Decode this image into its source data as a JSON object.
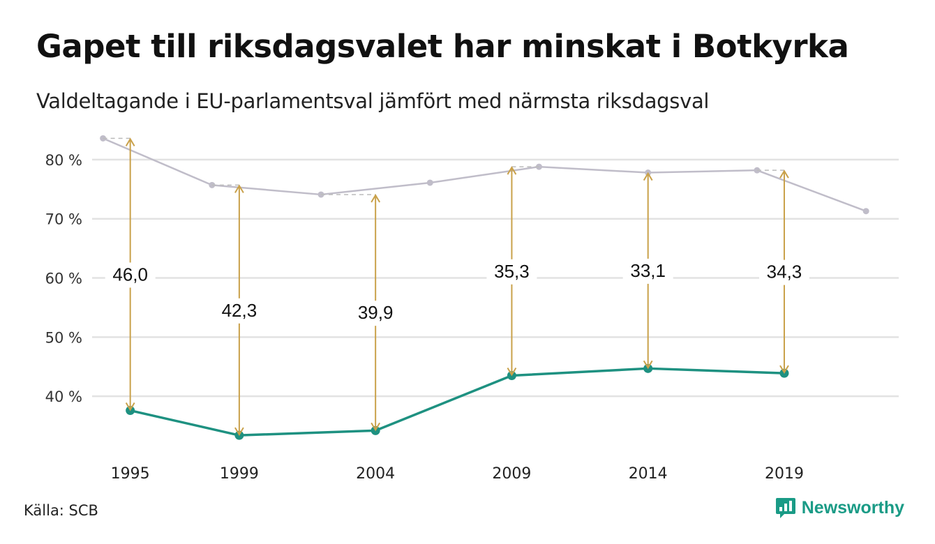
{
  "header": {
    "title": "Gapet till riksdagsvalet har minskat i Botkyrka",
    "subtitle": "Valdeltagande i EU-parlamentsval jämfört med närmsta riksdagsval"
  },
  "footer": {
    "source": "Källa: SCB",
    "brand": "Newsworthy"
  },
  "colors": {
    "riksdag": "#c0bdc9",
    "eu": "#1e9181",
    "arrow": "#c9a14a",
    "grid": "#e2e2e2"
  },
  "chart_data": {
    "type": "line",
    "ylim": [
      30,
      86
    ],
    "yticks": [
      {
        "value": 40,
        "label": "40 %"
      },
      {
        "value": 50,
        "label": "50 %"
      },
      {
        "value": 60,
        "label": "60 %"
      },
      {
        "value": 70,
        "label": "70 %"
      },
      {
        "value": 80,
        "label": "80 %"
      }
    ],
    "xlim": [
      1993.6,
      2023.2
    ],
    "xticks": [
      "1995",
      "1999",
      "2004",
      "2009",
      "2014",
      "2019"
    ],
    "series": [
      {
        "key": "riksdag",
        "points": [
          {
            "x": 1994,
            "y": 83.6
          },
          {
            "x": 1998,
            "y": 75.7
          },
          {
            "x": 2002,
            "y": 74.1
          },
          {
            "x": 2006,
            "y": 76.1
          },
          {
            "x": 2010,
            "y": 78.8
          },
          {
            "x": 2014,
            "y": 77.8
          },
          {
            "x": 2018,
            "y": 78.2
          },
          {
            "x": 2022,
            "y": 71.3
          }
        ]
      },
      {
        "key": "eu",
        "points": [
          {
            "x": 1995,
            "y": 37.6
          },
          {
            "x": 1999,
            "y": 33.4
          },
          {
            "x": 2004,
            "y": 34.2
          },
          {
            "x": 2009,
            "y": 43.5
          },
          {
            "x": 2014,
            "y": 44.7
          },
          {
            "x": 2019,
            "y": 43.9
          }
        ]
      }
    ],
    "gaps": [
      {
        "x": 1995,
        "from": 37.6,
        "to": 83.6,
        "label": "46,0"
      },
      {
        "x": 1999,
        "from": 33.4,
        "to": 75.7,
        "label": "42,3"
      },
      {
        "x": 2004,
        "from": 34.2,
        "to": 74.1,
        "label": "39,9"
      },
      {
        "x": 2009,
        "from": 43.5,
        "to": 78.8,
        "label": "35,3"
      },
      {
        "x": 2014,
        "from": 44.7,
        "to": 77.8,
        "label": "33,1"
      },
      {
        "x": 2019,
        "from": 43.9,
        "to": 78.2,
        "label": "34,3"
      }
    ]
  }
}
